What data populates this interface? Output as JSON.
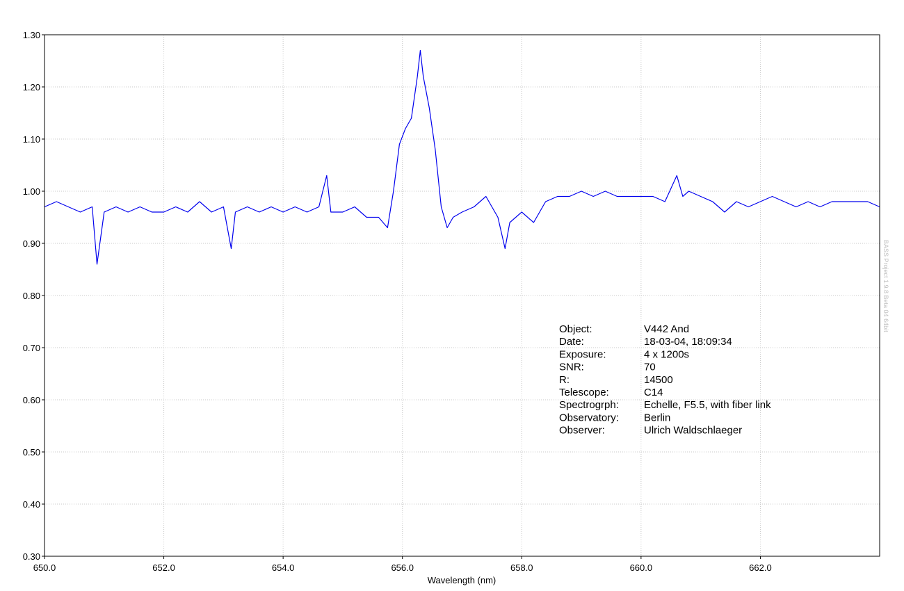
{
  "chart_data": {
    "type": "line",
    "xlabel": "Wavelength (nm)",
    "ylabel": "",
    "xlim": [
      650.0,
      664.0
    ],
    "ylim": [
      0.3,
      1.3
    ],
    "x_ticks": [
      "650.0",
      "652.0",
      "654.0",
      "656.0",
      "658.0",
      "660.0",
      "662.0"
    ],
    "y_ticks": [
      "0.30",
      "0.40",
      "0.50",
      "0.60",
      "0.70",
      "0.80",
      "0.90",
      "1.00",
      "1.10",
      "1.20",
      "1.30"
    ],
    "grid": true,
    "line_color": "#0000ee",
    "series": [
      {
        "x": [
          650.0,
          650.2,
          650.4,
          650.6,
          650.8,
          650.88,
          651.0,
          651.2,
          651.4,
          651.6,
          651.8,
          652.0,
          652.2,
          652.4,
          652.6,
          652.8,
          653.0,
          653.13,
          653.2,
          653.4,
          653.6,
          653.8,
          654.0,
          654.2,
          654.4,
          654.6,
          654.73,
          654.8,
          655.0,
          655.2,
          655.4,
          655.6,
          655.75,
          655.85,
          655.95,
          656.05,
          656.15,
          656.25,
          656.3,
          656.35,
          656.45,
          656.55,
          656.65,
          656.75,
          656.85,
          657.0,
          657.2,
          657.4,
          657.5,
          657.6,
          657.72,
          657.8,
          658.0,
          658.2,
          658.4,
          658.6,
          658.8,
          659.0,
          659.2,
          659.4,
          659.6,
          659.8,
          660.0,
          660.2,
          660.4,
          660.6,
          660.7,
          660.8,
          661.0,
          661.2,
          661.4,
          661.6,
          661.8,
          662.0,
          662.2,
          662.4,
          662.6,
          662.8,
          663.0,
          663.2,
          663.4,
          663.6,
          663.8,
          664.0
        ],
        "values": [
          0.97,
          0.98,
          0.97,
          0.96,
          0.97,
          0.86,
          0.96,
          0.97,
          0.96,
          0.97,
          0.96,
          0.96,
          0.97,
          0.96,
          0.98,
          0.96,
          0.97,
          0.89,
          0.96,
          0.97,
          0.96,
          0.97,
          0.96,
          0.97,
          0.96,
          0.97,
          1.03,
          0.96,
          0.96,
          0.97,
          0.95,
          0.95,
          0.93,
          1.0,
          1.09,
          1.12,
          1.14,
          1.22,
          1.27,
          1.22,
          1.16,
          1.08,
          0.97,
          0.93,
          0.95,
          0.96,
          0.97,
          0.99,
          0.97,
          0.95,
          0.89,
          0.94,
          0.96,
          0.94,
          0.98,
          0.99,
          0.99,
          1.0,
          0.99,
          1.0,
          0.99,
          0.99,
          0.99,
          0.99,
          0.98,
          1.03,
          0.99,
          1.0,
          0.99,
          0.98,
          0.96,
          0.98,
          0.97,
          0.98,
          0.99,
          0.98,
          0.97,
          0.98,
          0.97,
          0.98,
          0.98,
          0.98,
          0.98,
          0.97
        ]
      }
    ]
  },
  "info": {
    "rows": [
      {
        "label": "Object:",
        "value": "V442 And"
      },
      {
        "label": "Date:",
        "value": "18-03-04, 18:09:34"
      },
      {
        "label": "Exposure:",
        "value": "4 x 1200s"
      },
      {
        "label": "SNR:",
        "value": "70"
      },
      {
        "label": "R:",
        "value": "14500"
      },
      {
        "label": "Telescope:",
        "value": "C14"
      },
      {
        "label": "Spectrogrph:",
        "value": "Echelle, F5.5, with fiber link"
      },
      {
        "label": "Observatory:",
        "value": "Berlin"
      },
      {
        "label": "Observer:",
        "value": "Ulrich Waldschlaeger"
      }
    ]
  },
  "watermark": "BASS Project 1.9.8 Beta 04 64bit"
}
